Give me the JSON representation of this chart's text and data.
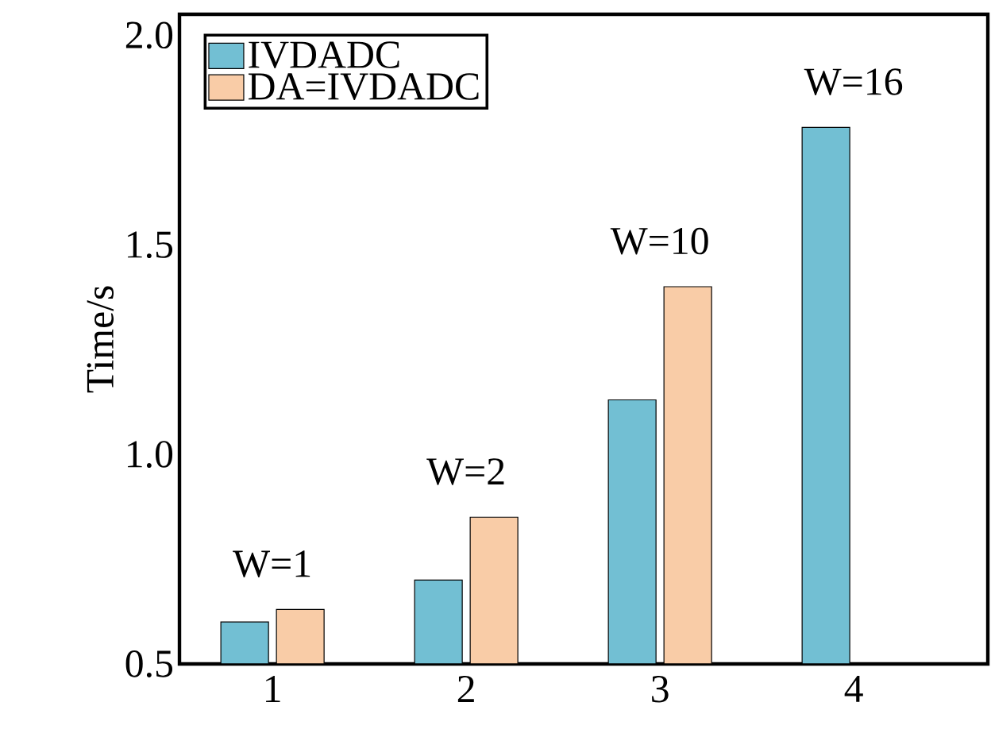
{
  "chart_data": {
    "type": "bar",
    "ylabel": "Time/s",
    "categories": [
      "1",
      "2",
      "3",
      "4"
    ],
    "series": [
      {
        "name": "IVDADC",
        "color": "#72bfd3",
        "values": [
          0.6,
          0.7,
          1.13,
          1.78
        ]
      },
      {
        "name": "DA=IVDADC",
        "color": "#f9cca7",
        "values": [
          0.63,
          0.85,
          1.4,
          null
        ]
      }
    ],
    "ylim": [
      0.5,
      2.05
    ],
    "yticks": [
      {
        "value": 0.5,
        "label": "0.5"
      },
      {
        "value": 1.0,
        "label": "1.0"
      },
      {
        "value": 1.5,
        "label": "1.5"
      },
      {
        "value": 2.0,
        "label": "2.0"
      }
    ],
    "annotations": [
      "W=1",
      "W=2",
      "W=10",
      "W=16"
    ],
    "legend": "top left",
    "grid": false
  }
}
